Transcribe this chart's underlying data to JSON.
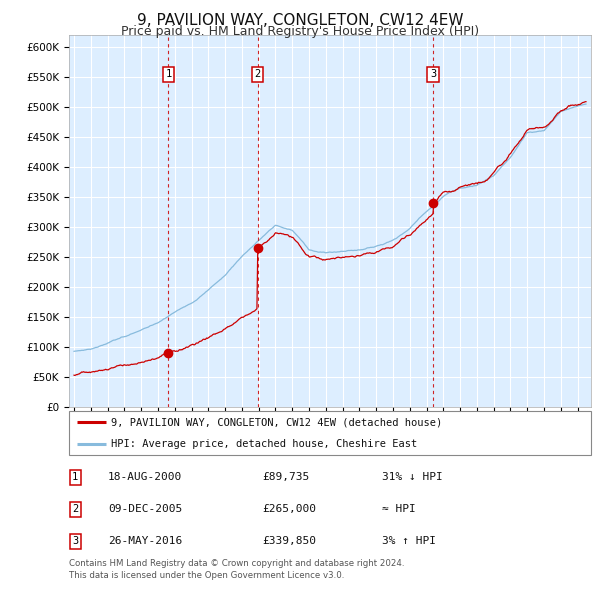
{
  "title": "9, PAVILION WAY, CONGLETON, CW12 4EW",
  "subtitle": "Price paid vs. HM Land Registry's House Price Index (HPI)",
  "title_fontsize": 11,
  "subtitle_fontsize": 9,
  "background_color": "#ffffff",
  "plot_bg_color": "#ddeeff",
  "grid_color": "#ffffff",
  "hpi_line_color": "#88bbdd",
  "price_line_color": "#cc0000",
  "marker_color": "#cc0000",
  "vline_color": "#cc0000",
  "ylim": [
    0,
    620000
  ],
  "yticks": [
    0,
    50000,
    100000,
    150000,
    200000,
    250000,
    300000,
    350000,
    400000,
    450000,
    500000,
    550000,
    600000
  ],
  "ytick_labels": [
    "£0",
    "£50K",
    "£100K",
    "£150K",
    "£200K",
    "£250K",
    "£300K",
    "£350K",
    "£400K",
    "£450K",
    "£500K",
    "£550K",
    "£600K"
  ],
  "xlim_start": 1994.7,
  "xlim_end": 2025.8,
  "sale_points": [
    {
      "date_num": 2000.625,
      "price": 89735,
      "label": "1"
    },
    {
      "date_num": 2005.94,
      "price": 265000,
      "label": "2"
    },
    {
      "date_num": 2016.4,
      "price": 339850,
      "label": "3"
    }
  ],
  "hpi_ctrl_x": [
    1995,
    1996,
    1997,
    1998,
    1999,
    2000,
    2001,
    2002,
    2003,
    2004,
    2005,
    2006,
    2007,
    2008,
    2009,
    2010,
    2011,
    2012,
    2013,
    2014,
    2015,
    2016,
    2017,
    2018,
    2019,
    2020,
    2021,
    2022,
    2023,
    2024,
    2025.5
  ],
  "hpi_ctrl_y": [
    93000,
    97000,
    107000,
    118000,
    128000,
    140000,
    158000,
    175000,
    195000,
    220000,
    252000,
    278000,
    303000,
    295000,
    263000,
    257000,
    260000,
    263000,
    268000,
    279000,
    298000,
    327000,
    352000,
    366000,
    370000,
    386000,
    418000,
    458000,
    462000,
    492000,
    505000
  ],
  "p1_price": 89735,
  "p1_date": 2000.625,
  "p2_price": 265000,
  "p2_date": 2005.94,
  "p3_price": 339850,
  "p3_date": 2016.4,
  "legend_entries": [
    {
      "label": "9, PAVILION WAY, CONGLETON, CW12 4EW (detached house)",
      "color": "#cc0000"
    },
    {
      "label": "HPI: Average price, detached house, Cheshire East",
      "color": "#88bbdd"
    }
  ],
  "table_rows": [
    {
      "num": "1",
      "date": "18-AUG-2000",
      "price": "£89,735",
      "rel": "31% ↓ HPI"
    },
    {
      "num": "2",
      "date": "09-DEC-2005",
      "price": "£265,000",
      "rel": "≈ HPI"
    },
    {
      "num": "3",
      "date": "26-MAY-2016",
      "price": "£339,850",
      "rel": "3% ↑ HPI"
    }
  ],
  "footer": "Contains HM Land Registry data © Crown copyright and database right 2024.\nThis data is licensed under the Open Government Licence v3.0."
}
